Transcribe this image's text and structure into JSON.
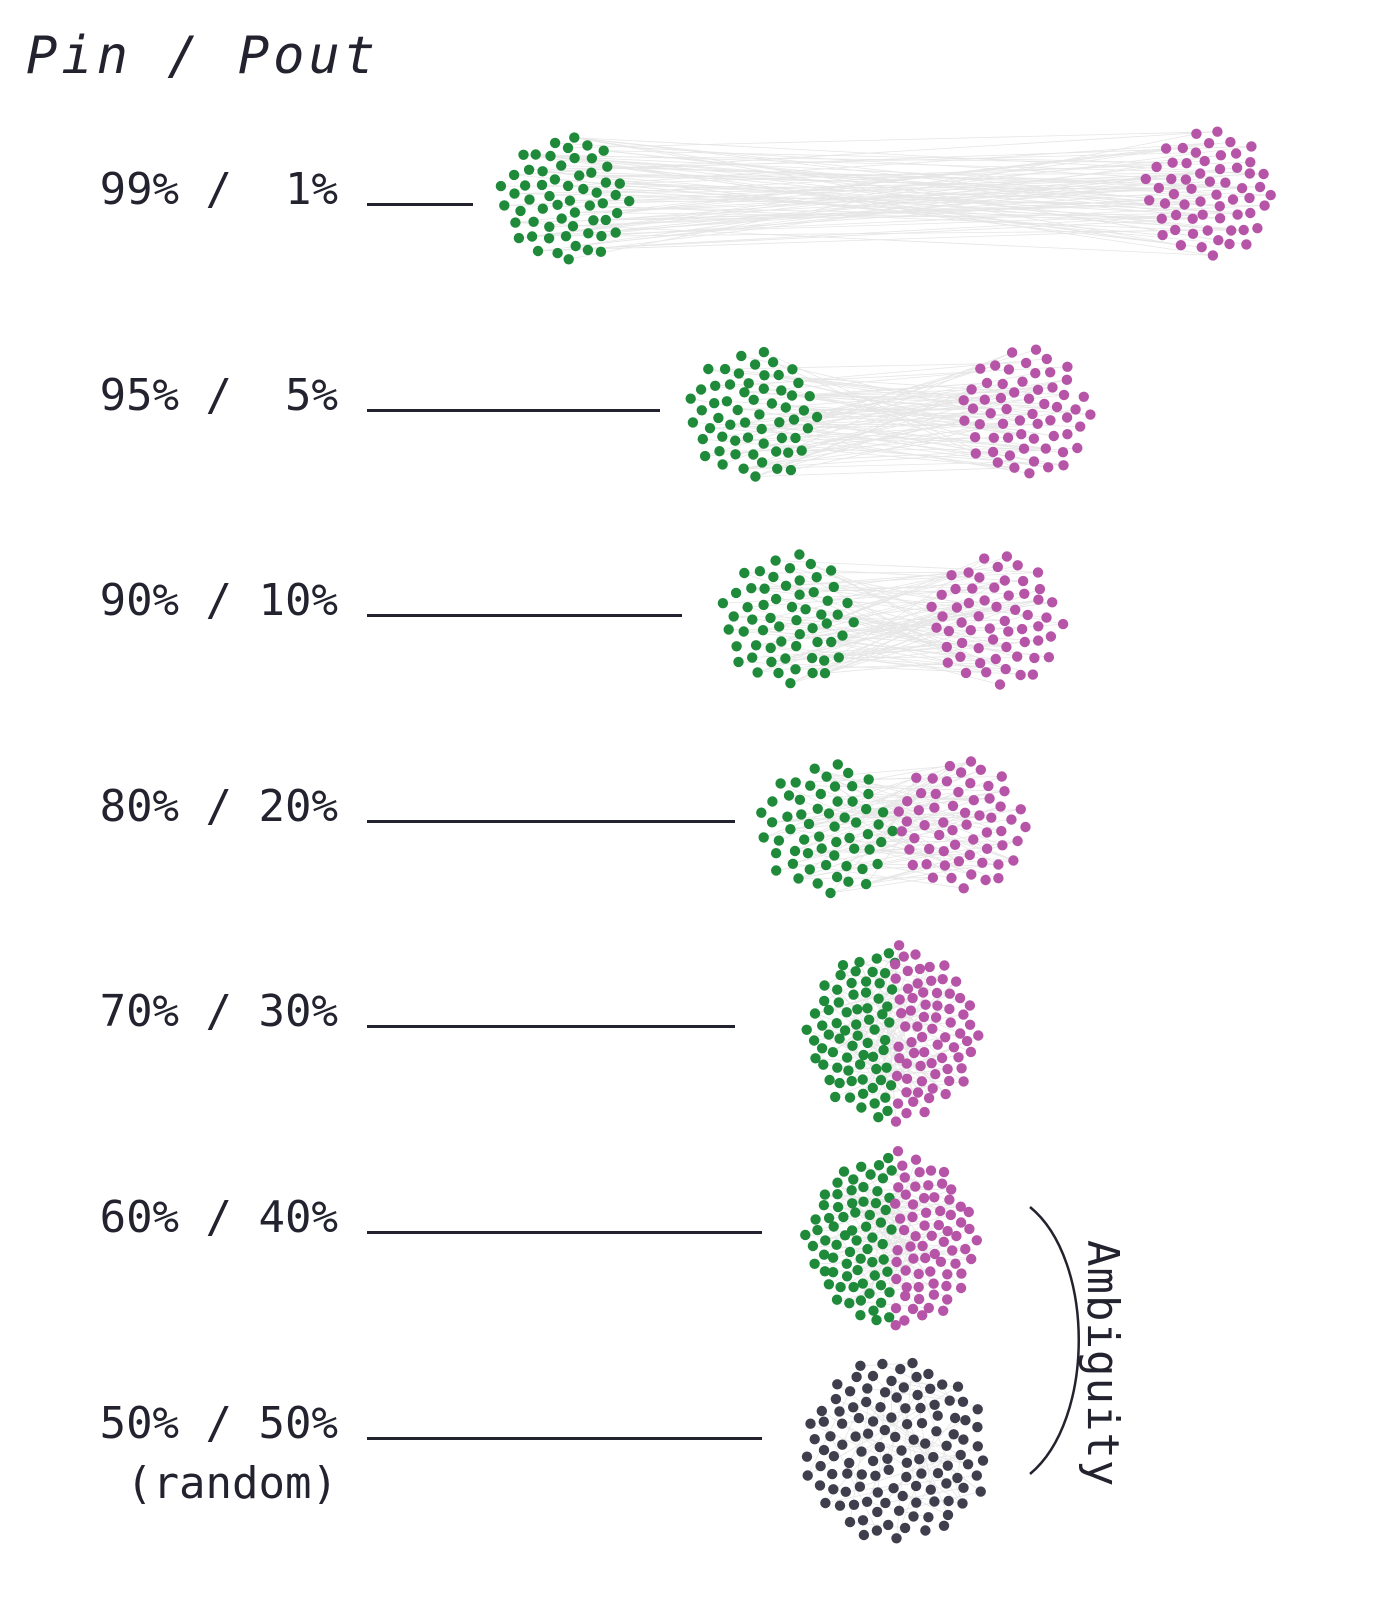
{
  "header": {
    "title": "Pin / Pout"
  },
  "colors": {
    "community_a": "#1e8a3a",
    "community_b": "#b655a8",
    "random": "#3f3e4d",
    "edges": "#e6e6e6",
    "text": "#23232f"
  },
  "rows": [
    {
      "label": "99% /  1%",
      "pin": 99,
      "pout": 1
    },
    {
      "label": "95% /  5%",
      "pin": 95,
      "pout": 5
    },
    {
      "label": "90% / 10%",
      "pin": 90,
      "pout": 10
    },
    {
      "label": "80% / 20%",
      "pin": 80,
      "pout": 20
    },
    {
      "label": "70% / 30%",
      "pin": 70,
      "pout": 30
    },
    {
      "label": "60% / 40%",
      "pin": 60,
      "pout": 40
    },
    {
      "label": "50% / 50%",
      "sublabel": "(random)",
      "pin": 50,
      "pout": 50
    }
  ],
  "ambiguity": {
    "label": "Ambiguity"
  }
}
